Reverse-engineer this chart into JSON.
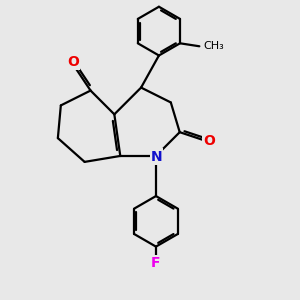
{
  "bg_color": "#e8e8e8",
  "bond_color": "#000000",
  "bond_width": 1.6,
  "N_color": "#1010cc",
  "O_color": "#ee0000",
  "F_color": "#ee00ee",
  "font_size": 10,
  "xlim": [
    0,
    10
  ],
  "ylim": [
    0,
    10
  ]
}
